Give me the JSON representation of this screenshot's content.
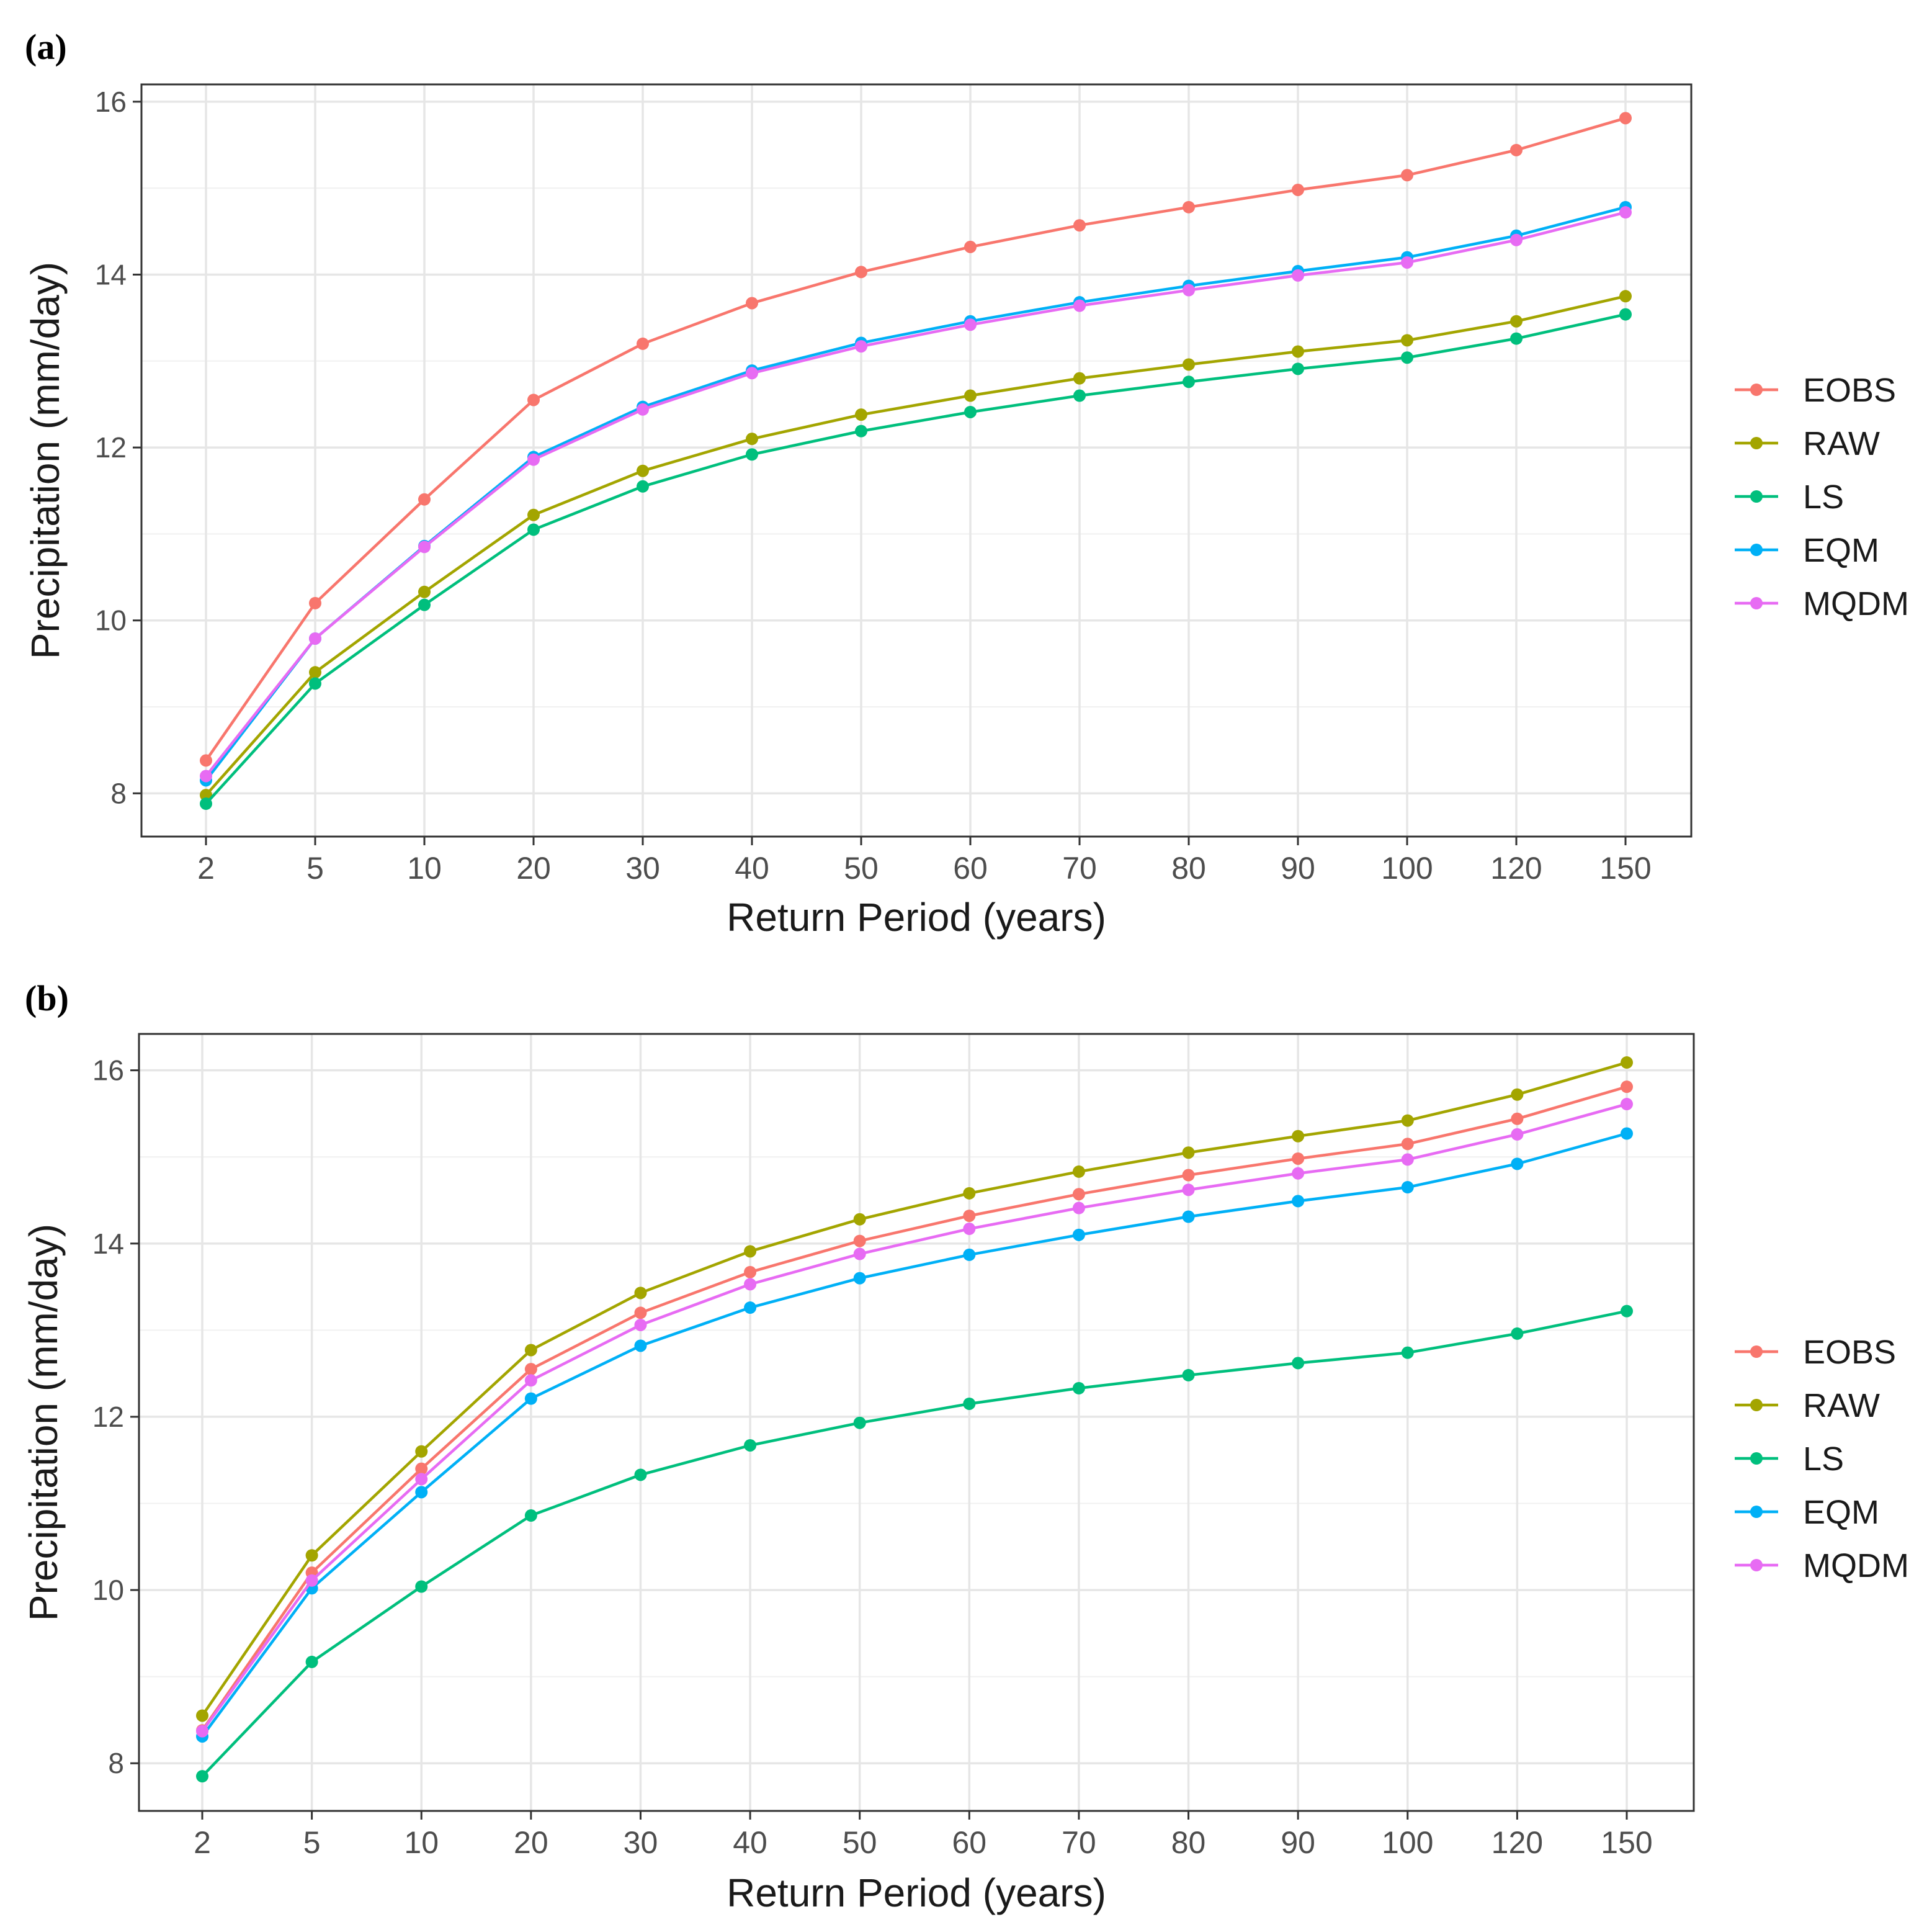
{
  "chart_data": [
    {
      "type": "line",
      "panel_label": "(a)",
      "title": "",
      "xlabel": "Return Period (years)",
      "ylabel": "Precipitation (mm/day)",
      "categories": [
        "2",
        "5",
        "10",
        "20",
        "30",
        "40",
        "50",
        "60",
        "70",
        "80",
        "90",
        "100",
        "120",
        "150"
      ],
      "ylim": [
        7.5,
        16.2
      ],
      "yticks": [
        8,
        10,
        12,
        14,
        16
      ],
      "grid": true,
      "legend_position": "right",
      "series": [
        {
          "name": "EOBS",
          "color": "#F8766D",
          "values": [
            8.38,
            10.2,
            11.4,
            12.55,
            13.2,
            13.67,
            14.03,
            14.32,
            14.57,
            14.78,
            14.98,
            15.15,
            15.44,
            15.81
          ]
        },
        {
          "name": "RAW",
          "color": "#A3A500",
          "values": [
            7.98,
            9.4,
            10.33,
            11.22,
            11.73,
            12.1,
            12.38,
            12.6,
            12.8,
            12.96,
            13.11,
            13.24,
            13.46,
            13.75
          ]
        },
        {
          "name": "LS",
          "color": "#00BF7D",
          "values": [
            7.88,
            9.27,
            10.18,
            11.05,
            11.55,
            11.92,
            12.19,
            12.41,
            12.6,
            12.76,
            12.91,
            13.04,
            13.26,
            13.54
          ]
        },
        {
          "name": "EQM",
          "color": "#00B0F6",
          "values": [
            8.15,
            9.79,
            10.86,
            11.89,
            12.47,
            12.89,
            13.21,
            13.46,
            13.68,
            13.87,
            14.04,
            14.2,
            14.45,
            14.78
          ]
        },
        {
          "name": "MQDM",
          "color": "#E76BF3",
          "values": [
            8.2,
            9.79,
            10.85,
            11.86,
            12.44,
            12.86,
            13.17,
            13.42,
            13.64,
            13.82,
            13.99,
            14.14,
            14.4,
            14.72
          ]
        }
      ]
    },
    {
      "type": "line",
      "panel_label": "(b)",
      "title": "",
      "xlabel": "Return Period (years)",
      "ylabel": "Precipitation (mm/day)",
      "categories": [
        "2",
        "5",
        "10",
        "20",
        "30",
        "40",
        "50",
        "60",
        "70",
        "80",
        "90",
        "100",
        "120",
        "150"
      ],
      "ylim": [
        7.45,
        16.42
      ],
      "yticks": [
        8,
        10,
        12,
        14,
        16
      ],
      "grid": true,
      "legend_position": "right",
      "series": [
        {
          "name": "EOBS",
          "color": "#F8766D",
          "values": [
            8.38,
            10.2,
            11.4,
            12.55,
            13.2,
            13.67,
            14.03,
            14.32,
            14.57,
            14.79,
            14.98,
            15.15,
            15.44,
            15.81
          ]
        },
        {
          "name": "RAW",
          "color": "#A3A500",
          "values": [
            8.55,
            10.4,
            11.6,
            12.77,
            13.43,
            13.91,
            14.28,
            14.58,
            14.83,
            15.05,
            15.24,
            15.42,
            15.72,
            16.09
          ]
        },
        {
          "name": "LS",
          "color": "#00BF7D",
          "values": [
            7.85,
            9.17,
            10.04,
            10.86,
            11.33,
            11.67,
            11.93,
            12.15,
            12.33,
            12.48,
            12.62,
            12.74,
            12.96,
            13.22
          ]
        },
        {
          "name": "EQM",
          "color": "#00B0F6",
          "values": [
            8.31,
            10.02,
            11.13,
            12.21,
            12.82,
            13.26,
            13.6,
            13.87,
            14.1,
            14.31,
            14.49,
            14.65,
            14.92,
            15.27
          ]
        },
        {
          "name": "MQDM",
          "color": "#E76BF3",
          "values": [
            8.37,
            10.11,
            11.28,
            12.42,
            13.06,
            13.53,
            13.88,
            14.17,
            14.41,
            14.62,
            14.81,
            14.97,
            15.26,
            15.61
          ]
        }
      ]
    }
  ]
}
